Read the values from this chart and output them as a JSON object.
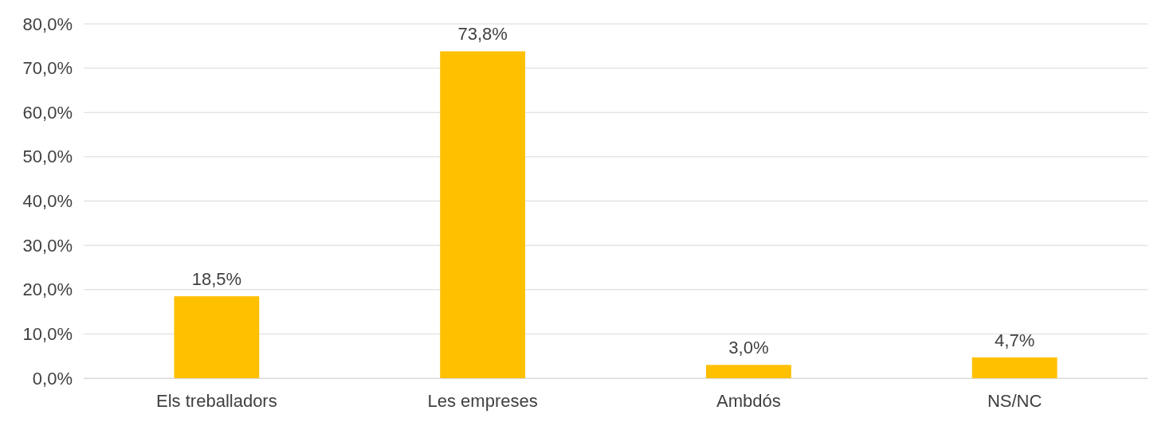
{
  "chart_data": {
    "type": "bar",
    "categories": [
      "Els treballadors",
      "Les empreses",
      "Ambdós",
      "NS/NC"
    ],
    "values": [
      18.5,
      73.8,
      3.0,
      4.7
    ],
    "value_labels": [
      "18,5%",
      "73,8%",
      "3,0%",
      "4,7%"
    ],
    "color": "#ffc000",
    "ylim": [
      0,
      80
    ],
    "yticks": [
      {
        "value": 0,
        "label": "0,0%"
      },
      {
        "value": 10,
        "label": "10,0%"
      },
      {
        "value": 20,
        "label": "20,0%"
      },
      {
        "value": 30,
        "label": "30,0%"
      },
      {
        "value": 40,
        "label": "40,0%"
      },
      {
        "value": 50,
        "label": "50,0%"
      },
      {
        "value": 60,
        "label": "60,0%"
      },
      {
        "value": 70,
        "label": "70,0%"
      },
      {
        "value": 80,
        "label": "80,0%"
      }
    ],
    "grid": "y"
  }
}
